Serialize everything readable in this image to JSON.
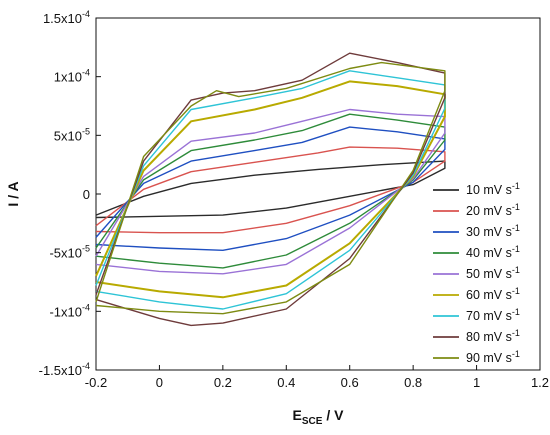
{
  "chart_data": {
    "type": "line",
    "title": "",
    "xlabel": {
      "main": "E",
      "sub": "SCE",
      "rest": " / V"
    },
    "ylabel": "I / A",
    "xlim": [
      -0.2,
      1.2
    ],
    "ylim": [
      -0.00015,
      0.00015
    ],
    "x_ticks": [
      {
        "value": -0.2,
        "label": "-0.2"
      },
      {
        "value": 0.0,
        "label": "0"
      },
      {
        "value": 0.2,
        "label": "0.2"
      },
      {
        "value": 0.4,
        "label": "0.4"
      },
      {
        "value": 0.6,
        "label": "0.6"
      },
      {
        "value": 0.8,
        "label": "0.8"
      },
      {
        "value": 1.0,
        "label": "1"
      },
      {
        "value": 1.2,
        "label": "1.2"
      }
    ],
    "y_ticks": [
      {
        "value": -0.00015,
        "label": "-1.5x10",
        "exp": "-4"
      },
      {
        "value": -0.0001,
        "label": "-1x10",
        "exp": "-4"
      },
      {
        "value": -5e-05,
        "label": "-5x10",
        "exp": "-5"
      },
      {
        "value": 0,
        "label": "0",
        "exp": ""
      },
      {
        "value": 5e-05,
        "label": "5x10",
        "exp": "-5"
      },
      {
        "value": 0.0001,
        "label": "1x10",
        "exp": "-4"
      },
      {
        "value": 0.00015,
        "label": "1.5x10",
        "exp": "-4"
      }
    ],
    "grid": false,
    "legend_position": "right",
    "series": [
      {
        "name": "10 mV s",
        "sup": "-1",
        "color": "#2b2b2b",
        "x": [
          -0.2,
          -0.05,
          0.1,
          0.3,
          0.5,
          0.7,
          0.9,
          0.9,
          0.8,
          0.6,
          0.4,
          0.2,
          0.0,
          -0.2
        ],
        "y": [
          -1.8e-05,
          -2e-06,
          9e-06,
          1.6e-05,
          2.1e-05,
          2.5e-05,
          2.8e-05,
          2.2e-05,
          8e-06,
          -2e-06,
          -1.2e-05,
          -1.8e-05,
          -1.9e-05,
          -2e-05
        ]
      },
      {
        "name": "20 mV s",
        "sup": "-1",
        "color": "#d9534f",
        "x": [
          -0.2,
          -0.05,
          0.1,
          0.3,
          0.5,
          0.6,
          0.75,
          0.9,
          0.9,
          0.8,
          0.6,
          0.4,
          0.2,
          0.0,
          -0.2
        ],
        "y": [
          -2.7e-05,
          4e-06,
          1.9e-05,
          2.7e-05,
          3.5e-05,
          4e-05,
          3.9e-05,
          3.6e-05,
          2.8e-05,
          1e-05,
          -1e-05,
          -2.5e-05,
          -3.3e-05,
          -3.3e-05,
          -3.2e-05
        ]
      },
      {
        "name": "30 mV s",
        "sup": "-1",
        "color": "#1f4fc1",
        "x": [
          -0.2,
          -0.05,
          0.1,
          0.3,
          0.45,
          0.6,
          0.75,
          0.9,
          0.9,
          0.8,
          0.6,
          0.4,
          0.2,
          0.0,
          -0.2
        ],
        "y": [
          -3.7e-05,
          9e-06,
          2.8e-05,
          3.7e-05,
          4.4e-05,
          5.7e-05,
          5.3e-05,
          4.7e-05,
          3.8e-05,
          1e-05,
          -1.8e-05,
          -3.8e-05,
          -4.8e-05,
          -4.6e-05,
          -4.3e-05
        ]
      },
      {
        "name": "40 mV s",
        "sup": "-1",
        "color": "#2e8b3a",
        "x": [
          -0.2,
          -0.05,
          0.1,
          0.3,
          0.45,
          0.6,
          0.75,
          0.9,
          0.9,
          0.8,
          0.6,
          0.4,
          0.2,
          0.0,
          -0.2
        ],
        "y": [
          -4.6e-05,
          1.2e-05,
          3.7e-05,
          4.6e-05,
          5.4e-05,
          6.8e-05,
          6.3e-05,
          5.7e-05,
          4.6e-05,
          1.2e-05,
          -2.5e-05,
          -5.2e-05,
          -6.3e-05,
          -5.9e-05,
          -5.3e-05
        ]
      },
      {
        "name": "50 mV s",
        "sup": "-1",
        "color": "#9a72d6",
        "x": [
          -0.2,
          -0.05,
          0.1,
          0.3,
          0.45,
          0.6,
          0.75,
          0.9,
          0.9,
          0.8,
          0.6,
          0.4,
          0.2,
          0.0,
          -0.2
        ],
        "y": [
          -5.3e-05,
          1.5e-05,
          4.5e-05,
          5.2e-05,
          6.2e-05,
          7.2e-05,
          6.8e-05,
          6.6e-05,
          5.2e-05,
          1.3e-05,
          -2.9e-05,
          -6e-05,
          -6.8e-05,
          -6.6e-05,
          -6e-05
        ]
      },
      {
        "name": "60 mV s",
        "sup": "-1",
        "color": "#b8aa00",
        "x": [
          -0.2,
          -0.05,
          0.1,
          0.3,
          0.45,
          0.6,
          0.75,
          0.9,
          0.9,
          0.8,
          0.6,
          0.4,
          0.2,
          0.0,
          -0.2
        ],
        "y": [
          -7e-05,
          2e-05,
          6.2e-05,
          7.2e-05,
          8.2e-05,
          9.6e-05,
          9.2e-05,
          8.5e-05,
          6.6e-05,
          1.5e-05,
          -4.2e-05,
          -7.8e-05,
          -8.8e-05,
          -8.3e-05,
          -7.5e-05
        ]
      },
      {
        "name": "70 mV s",
        "sup": "-1",
        "color": "#2ec4d6",
        "x": [
          -0.2,
          -0.05,
          0.1,
          0.3,
          0.45,
          0.6,
          0.75,
          0.9,
          0.9,
          0.8,
          0.6,
          0.4,
          0.2,
          0.0,
          -0.2
        ],
        "y": [
          -7.8e-05,
          2.4e-05,
          7.2e-05,
          8.2e-05,
          9e-05,
          0.000105,
          9.9e-05,
          9.3e-05,
          7.3e-05,
          1.6e-05,
          -4.8e-05,
          -8.5e-05,
          -9.8e-05,
          -9.2e-05,
          -8.3e-05
        ]
      },
      {
        "name": "80 mV s",
        "sup": "-1",
        "color": "#6e3b3b",
        "x": [
          -0.2,
          -0.05,
          0.1,
          0.2,
          0.3,
          0.45,
          0.6,
          0.75,
          0.9,
          0.9,
          0.8,
          0.6,
          0.4,
          0.2,
          0.1,
          0.0,
          -0.2
        ],
        "y": [
          -8.6e-05,
          2.8e-05,
          8e-05,
          8.6e-05,
          8.8e-05,
          9.7e-05,
          0.00012,
          0.000112,
          0.000103,
          8.2e-05,
          1.8e-05,
          -5.5e-05,
          -9.8e-05,
          -0.00011,
          -0.000112,
          -0.000106,
          -9e-05
        ]
      },
      {
        "name": "90 mV s",
        "sup": "-1",
        "color": "#7d8b12",
        "x": [
          -0.2,
          -0.05,
          0.1,
          0.18,
          0.25,
          0.4,
          0.6,
          0.7,
          0.9,
          0.9,
          0.8,
          0.6,
          0.4,
          0.2,
          0.0,
          -0.2
        ],
        "y": [
          -9.2e-05,
          3.2e-05,
          7.5e-05,
          8.8e-05,
          8.3e-05,
          9e-05,
          0.000107,
          0.000112,
          0.000105,
          8.8e-05,
          2e-05,
          -6e-05,
          -9.2e-05,
          -0.000102,
          -0.0001,
          -9.5e-05
        ]
      }
    ]
  }
}
